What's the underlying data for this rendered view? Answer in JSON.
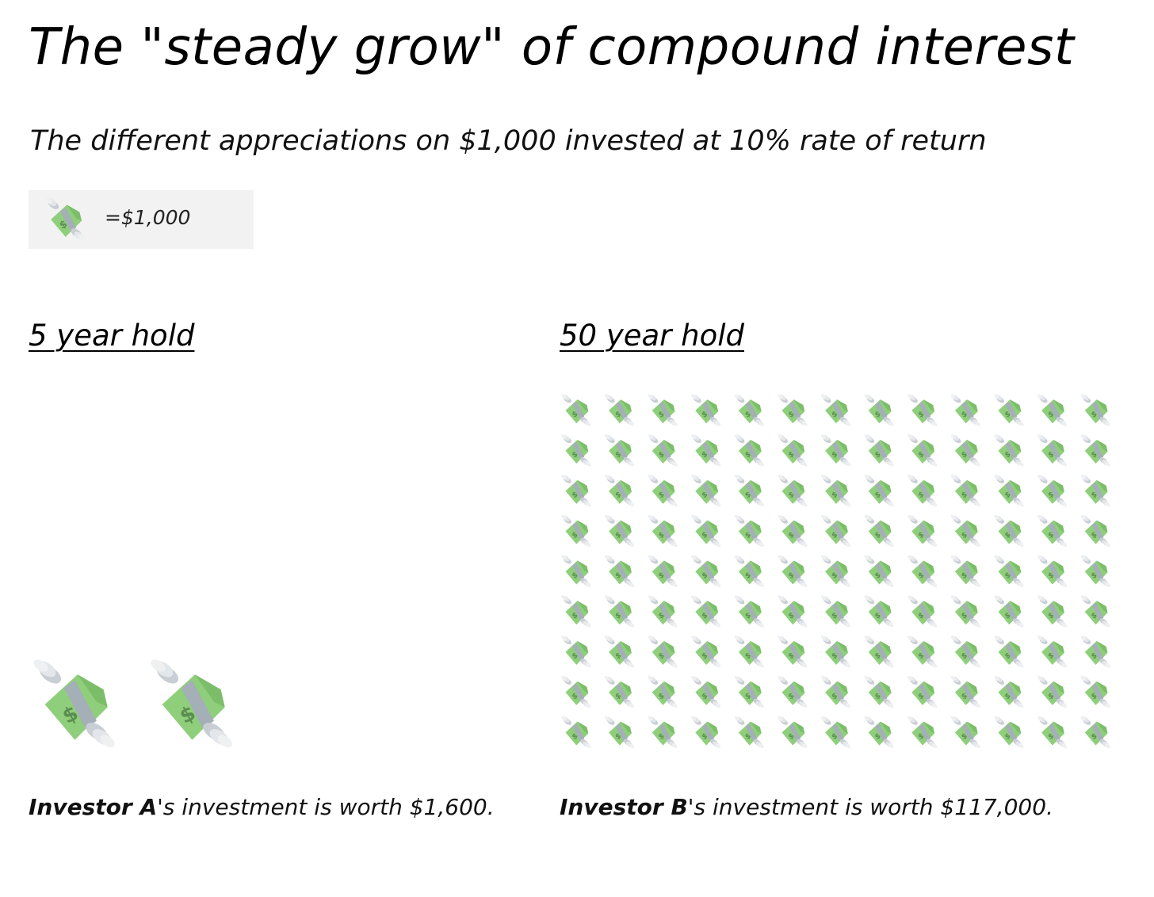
{
  "title": "The \"steady grow\" of compound interest",
  "subtitle": "The different appreciations on $1,000 invested at 10% rate of return",
  "legend": {
    "icon": "flying-money-icon",
    "label": "=$1,000"
  },
  "chart_data": [
    {
      "type": "pictograph",
      "title": "5 year hold",
      "unit_value": 1000,
      "value": 1600,
      "icon_count": 2,
      "caption": {
        "investor": "Investor A",
        "text": "'s investment is worth $1,600."
      }
    },
    {
      "type": "pictograph",
      "title": "50 year hold",
      "unit_value": 1000,
      "value": 117000,
      "icon_count": 117,
      "rows": 9,
      "columns": 13,
      "caption": {
        "investor": "Investor B",
        "text": "'s investment is worth $117,000."
      }
    }
  ],
  "colors": {
    "bill": "#8fcf7b",
    "bill_dark": "#7cbd69",
    "band": "#a4afb7",
    "dollar_sign": "#5c8e52",
    "wing": "#e3e6ea",
    "wing_shadow": "#c9ced4",
    "legend_bg": "#f2f2f2"
  }
}
